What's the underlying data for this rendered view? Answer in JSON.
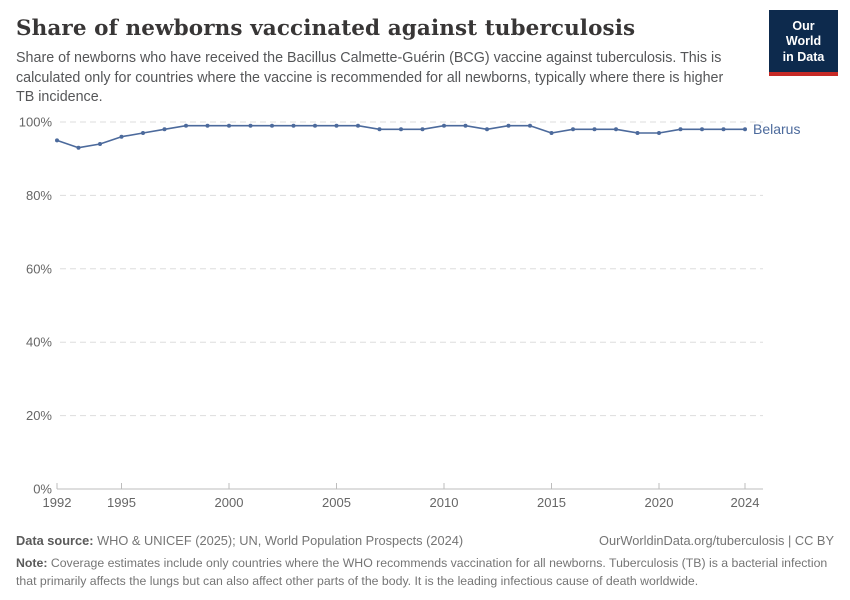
{
  "header": {
    "title": "Share of newborns vaccinated against tuberculosis",
    "subtitle": "Share of newborns who have received the Bacillus Calmette-Guérin (BCG) vaccine against tuberculosis. This is calculated only for countries where the vaccine is recommended for all newborns, typically where there is higher TB incidence.",
    "logo": {
      "line1": "Our World",
      "line2": "in Data",
      "bg_color": "#0d2a4d",
      "accent_color": "#c72a26"
    }
  },
  "chart_data": {
    "type": "line",
    "title": "Share of newborns vaccinated against tuberculosis",
    "x": [
      1992,
      1993,
      1994,
      1995,
      1996,
      1997,
      1998,
      1999,
      2000,
      2001,
      2002,
      2003,
      2004,
      2005,
      2006,
      2007,
      2008,
      2009,
      2010,
      2011,
      2012,
      2013,
      2014,
      2015,
      2016,
      2017,
      2018,
      2019,
      2020,
      2021,
      2022,
      2023,
      2024
    ],
    "series": [
      {
        "name": "Belarus",
        "color": "#4c6a9c",
        "values": [
          95,
          93,
          94,
          96,
          97,
          98,
          99,
          99,
          99,
          99,
          99,
          99,
          99,
          99,
          99,
          98,
          98,
          98,
          99,
          99,
          98,
          99,
          99,
          97,
          98,
          98,
          98,
          97,
          97,
          98,
          98,
          98,
          98
        ]
      }
    ],
    "xlim": [
      1992,
      2024
    ],
    "ylim": [
      0,
      100
    ],
    "x_ticks": [
      1992,
      1995,
      2000,
      2005,
      2010,
      2015,
      2020,
      2024
    ],
    "y_ticks": [
      0,
      20,
      40,
      60,
      80,
      100
    ],
    "y_tick_suffix": "%",
    "grid": "horizontal-dashed",
    "legend_position": "end-of-line-label",
    "colors": {
      "grid": "#dddddd",
      "axis": "#bdbdbd",
      "tick_text": "#666666"
    }
  },
  "footer": {
    "datasource_label": "Data source:",
    "datasource_text": " WHO & UNICEF (2025); UN, World Population Prospects (2024)",
    "rights": "OurWorldinData.org/tuberculosis | CC BY",
    "note_label": "Note:",
    "note_text": " Coverage estimates include only countries where the WHO recommends vaccination for all newborns. Tuberculosis (TB) is a bacterial infection that primarily affects the lungs but can also affect other parts of the body. It is the leading infectious cause of death worldwide."
  }
}
